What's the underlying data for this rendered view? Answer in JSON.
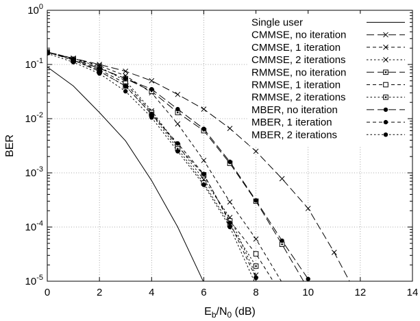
{
  "chart_data": {
    "type": "line",
    "xlabel": "E_b/N_0 (dB)",
    "ylabel": "BER",
    "xlim": [
      0,
      14
    ],
    "ylim": [
      1e-05,
      1
    ],
    "y_scale": "log",
    "grid": true,
    "legend_position": "top-right",
    "x_ticks": [
      0,
      2,
      4,
      6,
      8,
      10,
      12,
      14
    ],
    "y_ticks": [
      1e-05,
      0.0001,
      0.001,
      0.01,
      0.1,
      1
    ],
    "series": [
      {
        "name": "Single user",
        "line_style": "solid",
        "marker": "none",
        "x": [
          0,
          1,
          2,
          3,
          4,
          5,
          6
        ],
        "y": [
          0.09,
          0.04,
          0.013,
          0.0039,
          0.00072,
          0.0001,
          9.5e-06
        ]
      },
      {
        "name": "CMMSE, no iteration",
        "line_style": "long-dash",
        "marker": "x",
        "x": [
          0,
          1,
          2,
          3,
          4,
          5,
          6,
          7,
          8,
          9,
          10,
          11,
          12
        ],
        "y": [
          0.165,
          0.13,
          0.1,
          0.075,
          0.05,
          0.028,
          0.015,
          0.0066,
          0.0025,
          0.00078,
          0.00022,
          3.4e-05,
          4.2e-06
        ]
      },
      {
        "name": "CMMSE, 1 iteration",
        "line_style": "short-dash",
        "marker": "x",
        "x": [
          0,
          1,
          2,
          3,
          4,
          5,
          6,
          7,
          8,
          9
        ],
        "y": [
          0.17,
          0.13,
          0.095,
          0.062,
          0.03,
          0.008,
          0.0017,
          0.00029,
          6e-05,
          9.5e-06
        ]
      },
      {
        "name": "CMMSE, 2 iterations",
        "line_style": "dotted",
        "marker": "x",
        "x": [
          0,
          1,
          2,
          3,
          4,
          5,
          6,
          7,
          8
        ],
        "y": [
          0.17,
          0.13,
          0.09,
          0.05,
          0.014,
          0.0032,
          0.00075,
          0.00015,
          1.3e-05
        ]
      },
      {
        "name": "RMMSE, no iteration",
        "line_style": "long-dash",
        "marker": "square-dot",
        "x": [
          0,
          1,
          2,
          3,
          4,
          5,
          6,
          7,
          8,
          9,
          10
        ],
        "y": [
          0.17,
          0.125,
          0.085,
          0.055,
          0.032,
          0.013,
          0.006,
          0.0015,
          0.0003,
          4.8e-05,
          7.2e-06
        ]
      },
      {
        "name": "RMMSE, 1 iteration",
        "line_style": "short-dash",
        "marker": "square",
        "x": [
          0,
          1,
          2,
          3,
          4,
          5,
          6,
          7,
          8,
          9
        ],
        "y": [
          0.17,
          0.12,
          0.08,
          0.045,
          0.013,
          0.0031,
          0.00092,
          0.00013,
          3.2e-05,
          5.5e-06
        ]
      },
      {
        "name": "RMMSE, 2 iterations",
        "line_style": "dotted",
        "marker": "square-dot",
        "x": [
          0,
          1,
          2,
          3,
          4,
          5,
          6,
          7,
          8
        ],
        "y": [
          0.17,
          0.12,
          0.075,
          0.04,
          0.012,
          0.0028,
          0.00065,
          0.00011,
          1.9e-05
        ]
      },
      {
        "name": "MBER, no iteration",
        "line_style": "long-dash",
        "marker": "filled-circle",
        "x": [
          0,
          1,
          2,
          3,
          4,
          5,
          6,
          7,
          8,
          9,
          10,
          11
        ],
        "y": [
          0.17,
          0.125,
          0.085,
          0.055,
          0.035,
          0.015,
          0.0065,
          0.0016,
          0.00031,
          5.6e-05,
          1.1e-05,
          1.5e-06
        ]
      },
      {
        "name": "MBER, 1 iteration",
        "line_style": "short-dash",
        "marker": "filled-circle",
        "x": [
          0,
          1,
          2,
          3,
          4,
          5,
          6,
          7,
          8
        ],
        "y": [
          0.17,
          0.12,
          0.075,
          0.04,
          0.012,
          0.0035,
          0.00095,
          0.00012,
          1.15e-05
        ]
      },
      {
        "name": "MBER, 2 iterations",
        "line_style": "dotted",
        "marker": "filled-circle",
        "x": [
          0,
          1,
          2,
          3,
          4,
          5,
          6,
          7,
          8
        ],
        "y": [
          0.16,
          0.11,
          0.068,
          0.032,
          0.0105,
          0.0025,
          0.0006,
          0.0001,
          8.5e-06
        ]
      }
    ]
  }
}
